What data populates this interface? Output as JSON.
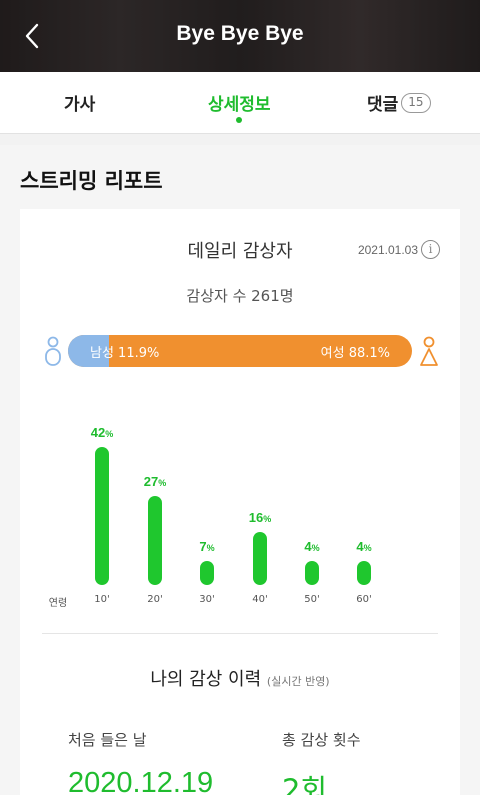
{
  "header": {
    "title": "Bye Bye Bye",
    "back_icon": "chevron-left-icon"
  },
  "tabs": [
    {
      "label": "가사",
      "active": false
    },
    {
      "label": "상세정보",
      "active": true
    },
    {
      "label": "댓글",
      "count": "15",
      "active": false
    }
  ],
  "section": {
    "title": "스트리밍 리포트"
  },
  "daily": {
    "title": "데일리 감상자",
    "date": "2021.01.03",
    "info_icon": "info-icon",
    "listeners": "감상자 수 261명"
  },
  "gender": {
    "male_label": "남성 11.9%",
    "female_label": "여성 88.1%",
    "male_share": 11.9,
    "female_share": 88.1,
    "male_color": "#8db8e8",
    "female_color": "#f0902f"
  },
  "chart_data": {
    "type": "bar",
    "xlabel": "연령",
    "categories": [
      "10'",
      "20'",
      "30'",
      "40'",
      "50'",
      "60'"
    ],
    "values": [
      42,
      27,
      7,
      16,
      4,
      4
    ],
    "value_labels": [
      "42",
      "27",
      "7",
      "16",
      "4",
      "4"
    ],
    "unit": "%",
    "color": "#1fc72e"
  },
  "my_history": {
    "title": "나의 감상 이력",
    "subtitle": "(실시간 반영)",
    "first_listen_label": "처음 들은 날",
    "first_listen_value": "2020.12.19",
    "total_count_label": "총 감상 횟수",
    "total_count_value": "2회"
  }
}
